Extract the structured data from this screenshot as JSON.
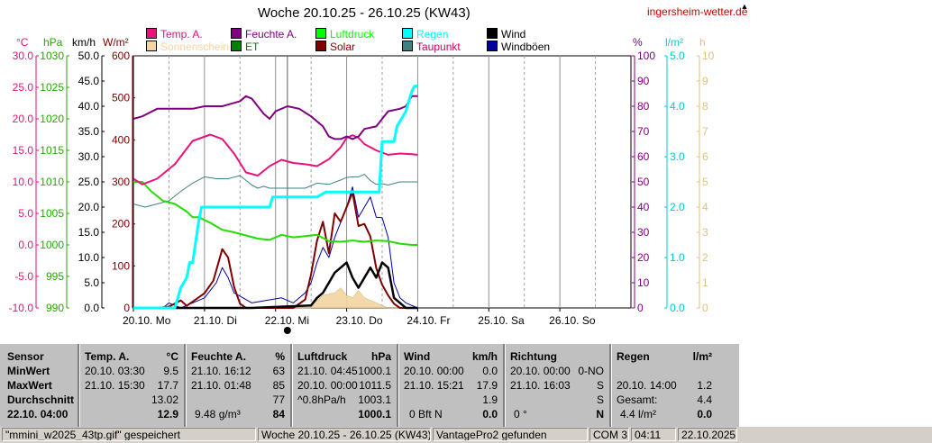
{
  "title": "Woche 20.10.25 - 26.10.25 (KW43)",
  "site_link": "ingersheim-wetter.de",
  "axis_units": {
    "celsius": "°C",
    "hpa": "hPa",
    "kmh": "km/h",
    "wm2": "W/m²",
    "percent": "%",
    "lm2": "l/m²",
    "hours": "h"
  },
  "axes": {
    "celsius": [
      "30.0",
      "25.0",
      "20.0",
      "15.0",
      "10.0",
      "5.0",
      "0.0",
      "-5.0",
      "-10.0"
    ],
    "hpa": [
      "1030",
      "1025",
      "1020",
      "1015",
      "1010",
      "1005",
      "1000",
      "995",
      "990"
    ],
    "kmh": [
      "50.0",
      "45.0",
      "40.0",
      "35.0",
      "30.0",
      "25.0",
      "20.0",
      "15.0",
      "10.0",
      "5.0",
      "0.0"
    ],
    "wm2": [
      "600",
      "500",
      "400",
      "300",
      "200",
      "100",
      "0"
    ],
    "percent": [
      "100",
      "90",
      "80",
      "70",
      "60",
      "50",
      "40",
      "30",
      "20",
      "10",
      "0"
    ],
    "lm2": [
      "5.0",
      "4.0",
      "3.0",
      "2.0",
      "1.0",
      "0.0"
    ],
    "hours": [
      "10",
      "9",
      "8",
      "7",
      "6",
      "5",
      "4",
      "3",
      "2",
      "1",
      "0"
    ]
  },
  "days": [
    "20.10. Mo",
    "21.10. Di",
    "22.10. Mi",
    "23.10. Do",
    "24.10. Fr",
    "25.10. Sa",
    "26.10. So"
  ],
  "legend": [
    {
      "label": "Temp. A.",
      "color": "#e8127c"
    },
    {
      "label": "Feuchte A.",
      "color": "#800080"
    },
    {
      "label": "Luftdruck",
      "color": "#00ff00"
    },
    {
      "label": "Regen",
      "color": "#00ffff"
    },
    {
      "label": "Wind",
      "color": "#000000"
    },
    {
      "label": "Sonnenschein",
      "color": "#f2d5a0"
    },
    {
      "label": "ET",
      "color": "#008000"
    },
    {
      "label": "Solar",
      "color": "#800000"
    },
    {
      "label": "Taupunkt",
      "color": "#408080"
    },
    {
      "label": "Windböen",
      "color": "#0000a0"
    }
  ],
  "colors": {
    "temp": "#e8127c",
    "humidity": "#800080",
    "pressure": "#22dd00",
    "rain": "#00ffff",
    "wind": "#000000",
    "gust": "#0000a0",
    "solar": "#800000",
    "dew": "#408080",
    "sun": "#f2d5a0"
  },
  "chart_data": {
    "type": "line",
    "x_unit": "hours since 20.10. 00:00",
    "series": [
      {
        "name": "Temp. A.",
        "unit": "°C",
        "points": [
          [
            0,
            10.5
          ],
          [
            3,
            9.6
          ],
          [
            8,
            10.5
          ],
          [
            14,
            12.8
          ],
          [
            20,
            16.5
          ],
          [
            26,
            17.5
          ],
          [
            30,
            16.8
          ],
          [
            34,
            14.5
          ],
          [
            38,
            11.5
          ],
          [
            42,
            11.0
          ],
          [
            46,
            12.5
          ],
          [
            50,
            13.5
          ],
          [
            54,
            13.0
          ],
          [
            58,
            12.8
          ],
          [
            62,
            12.5
          ],
          [
            66,
            13.6
          ],
          [
            70,
            15.5
          ],
          [
            72,
            17.0
          ],
          [
            74,
            17.4
          ],
          [
            76,
            17.0
          ],
          [
            78,
            16.0
          ],
          [
            82,
            15.0
          ],
          [
            86,
            14.3
          ],
          [
            90,
            14.5
          ],
          [
            94,
            14.4
          ],
          [
            96,
            14.3
          ]
        ]
      },
      {
        "name": "Feuchte A.",
        "unit": "%",
        "points": [
          [
            0,
            75
          ],
          [
            3,
            76
          ],
          [
            8,
            79
          ],
          [
            14,
            79
          ],
          [
            20,
            79
          ],
          [
            24,
            80
          ],
          [
            30,
            80
          ],
          [
            36,
            82
          ],
          [
            38,
            84
          ],
          [
            40,
            83
          ],
          [
            42,
            80
          ],
          [
            44,
            77
          ],
          [
            46,
            75
          ],
          [
            48,
            78
          ],
          [
            52,
            80
          ],
          [
            56,
            79
          ],
          [
            60,
            76
          ],
          [
            64,
            72
          ],
          [
            66,
            68
          ],
          [
            68,
            67
          ],
          [
            70,
            67
          ],
          [
            72,
            68
          ],
          [
            74,
            67
          ],
          [
            76,
            68
          ],
          [
            78,
            71
          ],
          [
            82,
            72
          ],
          [
            84,
            75
          ],
          [
            86,
            78
          ],
          [
            90,
            79
          ],
          [
            92,
            80
          ],
          [
            94,
            84
          ],
          [
            96,
            84
          ]
        ]
      },
      {
        "name": "Luftdruck",
        "unit": "hPa",
        "points": [
          [
            0,
            1010
          ],
          [
            3,
            1010
          ],
          [
            6,
            1008.5
          ],
          [
            10,
            1007
          ],
          [
            14,
            1006.5
          ],
          [
            18,
            1005.3
          ],
          [
            20,
            1004.4
          ],
          [
            22,
            1004.4
          ],
          [
            26,
            1003.5
          ],
          [
            30,
            1002.4
          ],
          [
            34,
            1002.0
          ],
          [
            38,
            1001.5
          ],
          [
            42,
            1001.0
          ],
          [
            46,
            1000.8
          ],
          [
            50,
            1001.6
          ],
          [
            54,
            1001.2
          ],
          [
            58,
            1001.4
          ],
          [
            62,
            1001.6
          ],
          [
            66,
            1000.6
          ],
          [
            70,
            1000.5
          ],
          [
            74,
            1000.7
          ],
          [
            78,
            1000.5
          ],
          [
            82,
            1000.7
          ],
          [
            86,
            1000.6
          ],
          [
            90,
            1000.2
          ],
          [
            94,
            1000.0
          ],
          [
            96,
            1000.0
          ]
        ]
      },
      {
        "name": "Taupunkt",
        "unit": "°C",
        "points": [
          [
            0,
            6.5
          ],
          [
            4,
            6.0
          ],
          [
            8,
            6.5
          ],
          [
            12,
            7.0
          ],
          [
            16,
            8.5
          ],
          [
            20,
            9.8
          ],
          [
            24,
            10.8
          ],
          [
            28,
            10.5
          ],
          [
            32,
            10.5
          ],
          [
            36,
            11.0
          ],
          [
            40,
            9.5
          ],
          [
            42,
            9.0
          ],
          [
            44,
            9.3
          ],
          [
            46,
            9.0
          ],
          [
            50,
            9.0
          ],
          [
            54,
            9.0
          ],
          [
            58,
            9.0
          ],
          [
            62,
            9.8
          ],
          [
            66,
            9.6
          ],
          [
            70,
            10.3
          ],
          [
            72,
            10.7
          ],
          [
            74,
            10.8
          ],
          [
            76,
            10.8
          ],
          [
            78,
            11.2
          ],
          [
            80,
            10.2
          ],
          [
            82,
            9.6
          ],
          [
            84,
            9.7
          ],
          [
            86,
            9.5
          ],
          [
            90,
            10.0
          ],
          [
            94,
            10.0
          ],
          [
            96,
            10.0
          ]
        ]
      },
      {
        "name": "Regen",
        "unit": "l/m²",
        "points": [
          [
            0,
            0
          ],
          [
            14,
            0
          ],
          [
            16,
            0.4
          ],
          [
            18,
            0.6
          ],
          [
            19,
            0.9
          ],
          [
            20,
            0.9
          ],
          [
            22,
            1.7
          ],
          [
            23,
            2.0
          ],
          [
            40,
            2.0
          ],
          [
            46,
            2.0
          ],
          [
            47,
            2.2
          ],
          [
            56,
            2.2
          ],
          [
            62,
            2.2
          ],
          [
            65,
            2.3
          ],
          [
            68,
            2.3
          ],
          [
            78,
            2.3
          ],
          [
            83,
            2.3
          ],
          [
            84,
            3.3
          ],
          [
            88,
            3.3
          ],
          [
            89,
            3.6
          ],
          [
            92,
            3.9
          ],
          [
            94,
            4.3
          ],
          [
            95,
            4.4
          ],
          [
            96,
            4.4
          ]
        ]
      },
      {
        "name": "Solar",
        "unit": "W/m²",
        "points": [
          [
            0,
            0
          ],
          [
            8,
            0
          ],
          [
            12,
            3
          ],
          [
            16,
            18
          ],
          [
            18,
            5
          ],
          [
            24,
            35
          ],
          [
            27,
            65
          ],
          [
            30,
            140
          ],
          [
            32,
            120
          ],
          [
            34,
            50
          ],
          [
            36,
            10
          ],
          [
            38,
            0
          ],
          [
            54,
            0
          ],
          [
            58,
            20
          ],
          [
            60,
            80
          ],
          [
            62,
            160
          ],
          [
            64,
            205
          ],
          [
            66,
            130
          ],
          [
            68,
            225
          ],
          [
            70,
            205
          ],
          [
            72,
            240
          ],
          [
            74,
            275
          ],
          [
            76,
            195
          ],
          [
            78,
            200
          ],
          [
            80,
            170
          ],
          [
            82,
            95
          ],
          [
            84,
            55
          ],
          [
            86,
            30
          ],
          [
            88,
            10
          ],
          [
            90,
            0
          ],
          [
            96,
            0
          ]
        ]
      },
      {
        "name": "Wind",
        "unit": "km/h",
        "points": [
          [
            0,
            0
          ],
          [
            40,
            0
          ],
          [
            60,
            0.5
          ],
          [
            62,
            2
          ],
          [
            64,
            3
          ],
          [
            66,
            5
          ],
          [
            68,
            7
          ],
          [
            70,
            8
          ],
          [
            72,
            9
          ],
          [
            74,
            6
          ],
          [
            76,
            4
          ],
          [
            78,
            6
          ],
          [
            80,
            8
          ],
          [
            82,
            6
          ],
          [
            84,
            9
          ],
          [
            86,
            8
          ],
          [
            88,
            2
          ],
          [
            90,
            1
          ],
          [
            92,
            0
          ],
          [
            96,
            0
          ]
        ]
      },
      {
        "name": "Windböen",
        "unit": "km/h",
        "points": [
          [
            0,
            0
          ],
          [
            10,
            0
          ],
          [
            12,
            1
          ],
          [
            16,
            0
          ],
          [
            20,
            1
          ],
          [
            24,
            2
          ],
          [
            28,
            5
          ],
          [
            30,
            8
          ],
          [
            32,
            6
          ],
          [
            34,
            3
          ],
          [
            40,
            1
          ],
          [
            50,
            2
          ],
          [
            54,
            1
          ],
          [
            58,
            3
          ],
          [
            60,
            5
          ],
          [
            62,
            9
          ],
          [
            64,
            12
          ],
          [
            66,
            10
          ],
          [
            68,
            14
          ],
          [
            70,
            17
          ],
          [
            72,
            20
          ],
          [
            74,
            24
          ],
          [
            76,
            18
          ],
          [
            78,
            20
          ],
          [
            80,
            22
          ],
          [
            82,
            18
          ],
          [
            84,
            17.9
          ],
          [
            86,
            14
          ],
          [
            88,
            5
          ],
          [
            90,
            2
          ],
          [
            92,
            1
          ],
          [
            96,
            0
          ]
        ]
      },
      {
        "name": "Sonnenschein",
        "unit": "h",
        "points": [
          [
            0,
            0
          ],
          [
            60,
            0
          ],
          [
            62,
            0.3
          ],
          [
            64,
            0.5
          ],
          [
            68,
            0.6
          ],
          [
            70,
            0.8
          ],
          [
            72,
            0.5
          ],
          [
            74,
            0.4
          ],
          [
            76,
            0.7
          ],
          [
            78,
            0.4
          ],
          [
            80,
            0.3
          ],
          [
            82,
            0.2
          ],
          [
            86,
            0
          ],
          [
            96,
            0
          ]
        ]
      }
    ]
  },
  "stats": {
    "col_sensor": {
      "header": "Sensor",
      "min": "MinWert",
      "max": "MaxWert",
      "avg": "Durchschnitt",
      "now": "22.10. 04:00"
    },
    "temp": {
      "header": "Temp. A.",
      "unit": "°C",
      "min_time": "20.10.  03:30",
      "min_val": "9.5",
      "max_time": "21.10.  15:30",
      "max_val": "17.7",
      "avg": "13.02",
      "now": "12.9"
    },
    "humidity": {
      "header": "Feuchte A.",
      "unit": "%",
      "min_time": "21.10.  16:12",
      "min_val": "63",
      "max_time": "21.10.  01:48",
      "max_val": "85",
      "avg": "77",
      "now_left": "9.48 g/m³",
      "now": "84"
    },
    "pressure": {
      "header": "Luftdruck",
      "unit": "hPa",
      "min_time": "21.10.  04:45",
      "min_val": "1000.1",
      "max_time": "20.10.  00:00",
      "max_val": "1011.5",
      "avg_label": "^0.8hPa/h",
      "avg": "1003.1",
      "now": "1000.1"
    },
    "wind": {
      "header": "Wind",
      "unit": "km/h",
      "min_time": "20.10.  00:00",
      "min_val": "0.0",
      "max_time": "21.10.  15:21",
      "max_val": "17.9",
      "avg": "1.9",
      "now_left": "0 Bft N",
      "now": "0.0"
    },
    "direction": {
      "header": "Richtung",
      "min_time": "20.10.  00:00",
      "min_val": "0-NO",
      "max_time": "21.10.  16:03",
      "max_val": "S",
      "avg": "S",
      "now_left": "0 °",
      "now": "N"
    },
    "rain": {
      "header": "Regen",
      "unit": "l/m²",
      "max_time": "20.10.  14:00",
      "max_val": "1.2",
      "avg_label": "Gesamt:",
      "avg": "4.4",
      "now_left": "4.4 l/m²",
      "now": "0.0"
    }
  },
  "statusbar": {
    "file": "\"mmini_w2025_43tp.gif\"  gespeichert",
    "week": "Woche 20.10.25 - 26.10.25 (KW43)",
    "station": "VantagePro2 gefunden",
    "port": "COM 3",
    "time": "04:11",
    "date": "22.10.2025"
  }
}
